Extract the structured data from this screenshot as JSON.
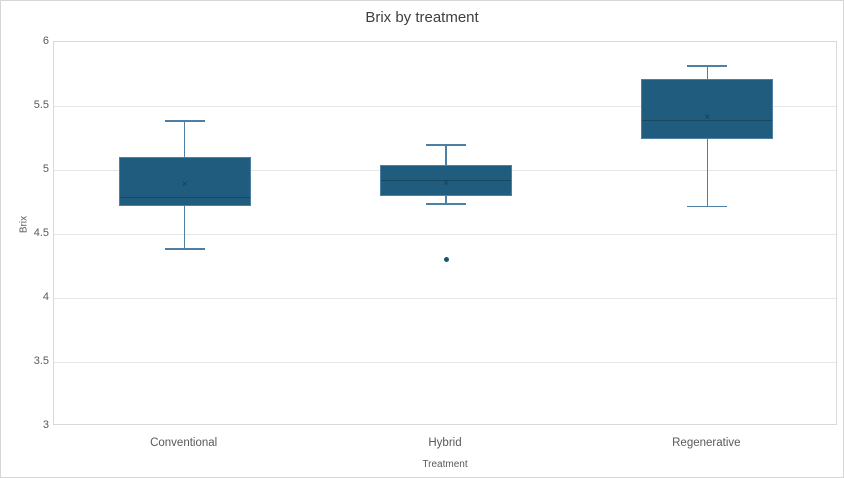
{
  "title": "Brix by treatment",
  "colors": {
    "box_fill": "#1f5c7d",
    "box_border": "#4e80a6",
    "whisker": "#4e80a6",
    "median_line": "#174a60",
    "mean_marker": "#163e52",
    "outlier": "#1a566f",
    "gridline": "#e7e7e7",
    "plot_border": "#d9d9d9",
    "title_text": "#3f3f3f",
    "axis_text": "#595959",
    "background": "#ffffff"
  },
  "chart_data": {
    "type": "boxplot",
    "title": "Brix by treatment",
    "xlabel": "Treatment",
    "ylabel": "Brix",
    "ylim": [
      3,
      6
    ],
    "ytick_step": 0.5,
    "ytick_labels": [
      "3",
      "3.5",
      "4",
      "4.5",
      "5",
      "5.5",
      "6"
    ],
    "grid": true,
    "legend": false,
    "categories": [
      "Conventional",
      "Hybrid",
      "Regenerative"
    ],
    "series": [
      {
        "category": "Conventional",
        "min": 4.39,
        "q1": 4.72,
        "median": 4.79,
        "mean": 4.88,
        "q3": 5.1,
        "max": 5.39,
        "outliers": []
      },
      {
        "category": "Hybrid",
        "min": 4.74,
        "q1": 4.8,
        "median": 4.92,
        "mean": 4.89,
        "q3": 5.04,
        "max": 5.2,
        "outliers": [
          4.3
        ]
      },
      {
        "category": "Regenerative",
        "min": 4.72,
        "q1": 5.24,
        "median": 5.39,
        "mean": 5.41,
        "q3": 5.71,
        "max": 5.82,
        "outliers": []
      }
    ],
    "mean_marker_glyph": "×"
  }
}
